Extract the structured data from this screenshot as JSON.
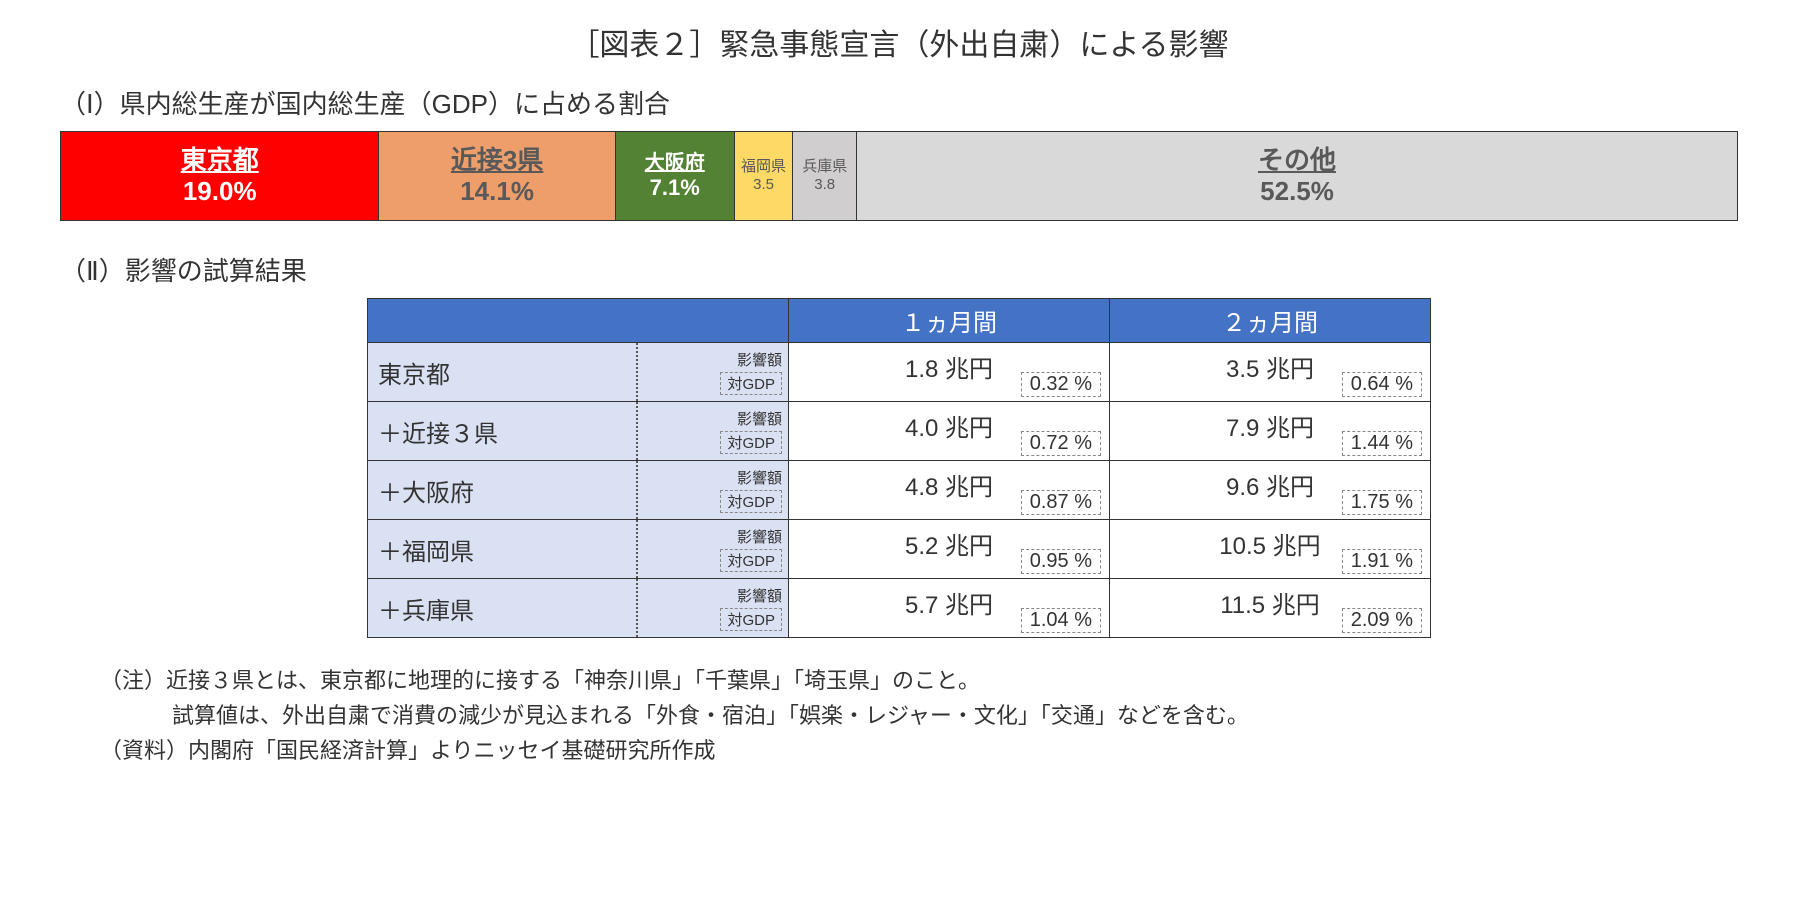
{
  "title": "［図表２］緊急事態宣言（外出自粛）による影響",
  "section1": {
    "label": "（Ⅰ）県内総生産が国内総生産（GDP）に占める割合",
    "segments": [
      {
        "name": "東京都",
        "value": "19.0%",
        "pct": 19.0,
        "bg": "#ff0000",
        "fg": "#ffffff",
        "name_fs": 26,
        "val_fs": 26,
        "small": false
      },
      {
        "name": "近接3県",
        "value": "14.1%",
        "pct": 14.1,
        "bg": "#ed9e6a",
        "fg": "#595959",
        "name_fs": 26,
        "val_fs": 26,
        "small": false
      },
      {
        "name": "大阪府",
        "value": "7.1%",
        "pct": 7.1,
        "bg": "#548235",
        "fg": "#ffffff",
        "name_fs": 20,
        "val_fs": 22,
        "small": false
      },
      {
        "name": "福岡県",
        "value": "3.5",
        "pct": 3.5,
        "bg": "#ffd966",
        "fg": "#595959",
        "name_fs": 15,
        "val_fs": 15,
        "small": true
      },
      {
        "name": "兵庫県",
        "value": "3.8",
        "pct": 3.8,
        "bg": "#d0cece",
        "fg": "#595959",
        "name_fs": 15,
        "val_fs": 15,
        "small": true
      },
      {
        "name": "その他",
        "value": "52.5%",
        "pct": 52.5,
        "bg": "#d9d9d9",
        "fg": "#595959",
        "name_fs": 26,
        "val_fs": 26,
        "small": false
      }
    ]
  },
  "section2": {
    "label": "（Ⅱ）影響の試算結果",
    "header_blank": "",
    "header_1m": "１ヵ月間",
    "header_2m": "２ヵ月間",
    "sub_label_1": "影響額",
    "sub_label_2": "対GDP",
    "rows": [
      {
        "region": "東京都",
        "m1_amount": "1.8 兆円",
        "m1_pct": "0.32 %",
        "m2_amount": "3.5 兆円",
        "m2_pct": "0.64 %"
      },
      {
        "region": "＋近接３県",
        "m1_amount": "4.0 兆円",
        "m1_pct": "0.72 %",
        "m2_amount": "7.9 兆円",
        "m2_pct": "1.44 %"
      },
      {
        "region": "＋大阪府",
        "m1_amount": "4.8 兆円",
        "m1_pct": "0.87 %",
        "m2_amount": "9.6 兆円",
        "m2_pct": "1.75 %"
      },
      {
        "region": "＋福岡県",
        "m1_amount": "5.2 兆円",
        "m1_pct": "0.95 %",
        "m2_amount": "10.5 兆円",
        "m2_pct": "1.91 %"
      },
      {
        "region": "＋兵庫県",
        "m1_amount": "5.7 兆円",
        "m1_pct": "1.04 %",
        "m2_amount": "11.5 兆円",
        "m2_pct": "2.09 %"
      }
    ],
    "header_bg": "#4472c4",
    "header_fg": "#ffffff",
    "rowhead_bg": "#d9e1f2"
  },
  "notes": {
    "line1": "（注）近接３県とは、東京都に地理的に接する「神奈川県」「千葉県」「埼玉県」のこと。",
    "line2": "試算値は、外出自粛で消費の減少が見込まれる「外食・宿泊」「娯楽・レジャー・文化」「交通」などを含む。",
    "line3": "（資料）内閣府「国民経済計算」よりニッセイ基礎研究所作成"
  }
}
